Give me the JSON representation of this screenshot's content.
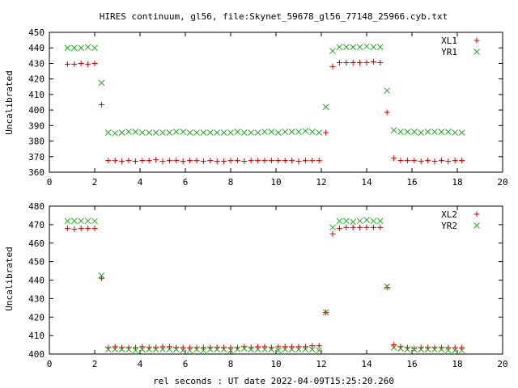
{
  "title": "HIRES continuum, gl56, file:Skynet_59678_gl56_77148_25966.cyb.txt",
  "xlabel": "rel seconds : UT date 2022-04-09T15:25:20.260",
  "colors": {
    "red": "#cc0000",
    "green": "#22aa22"
  },
  "chart_data": [
    {
      "type": "scatter",
      "ylabel": "Uncalibrated",
      "xlim": [
        0,
        20
      ],
      "ylim": [
        360,
        450
      ],
      "xticks": [
        0,
        2,
        4,
        6,
        8,
        10,
        12,
        14,
        16,
        18,
        20
      ],
      "yticks": [
        360,
        370,
        380,
        390,
        400,
        410,
        420,
        430,
        440,
        450
      ],
      "legend": "top-right",
      "grid": false,
      "x": [
        0.8,
        1.1,
        1.4,
        1.7,
        2.0,
        2.3,
        2.6,
        2.9,
        3.2,
        3.5,
        3.8,
        4.1,
        4.4,
        4.7,
        5.0,
        5.3,
        5.6,
        5.9,
        6.2,
        6.5,
        6.8,
        7.1,
        7.4,
        7.7,
        8.0,
        8.3,
        8.6,
        8.9,
        9.2,
        9.5,
        9.8,
        10.1,
        10.4,
        10.7,
        11.0,
        11.3,
        11.6,
        11.9,
        12.2,
        12.5,
        12.8,
        13.1,
        13.4,
        13.7,
        14.0,
        14.3,
        14.6,
        14.9,
        15.2,
        15.5,
        15.8,
        16.1,
        16.4,
        16.7,
        17.0,
        17.3,
        17.6,
        17.9,
        18.2
      ],
      "series": [
        {
          "name": "XL1",
          "marker": "plus",
          "color": "#cc0000",
          "values": [
            429.5,
            429.5,
            430,
            429.5,
            430,
            403.5,
            367.5,
            367.5,
            367,
            367.5,
            367,
            367.5,
            367.5,
            368,
            367,
            367.5,
            367.5,
            367,
            367.5,
            367.5,
            367,
            367.5,
            367,
            367,
            367.5,
            367.5,
            367,
            367.5,
            367.5,
            367.5,
            367.5,
            367.5,
            367.5,
            367.5,
            367,
            367.5,
            367.5,
            367.5,
            385.5,
            428,
            430.5,
            430.5,
            430.5,
            430.5,
            430.5,
            431,
            430.5,
            398.5,
            369,
            367.5,
            367.5,
            367.5,
            367,
            367.5,
            367,
            367.5,
            367,
            367.5,
            367.5
          ]
        },
        {
          "name": "YR1",
          "marker": "cross",
          "color": "#22aa22",
          "values": [
            440,
            440,
            440,
            440.5,
            440,
            417.5,
            385.5,
            385,
            385.5,
            386,
            386,
            385.5,
            385.5,
            385.5,
            385.5,
            385.5,
            386,
            386,
            385.5,
            385.5,
            385.5,
            385.5,
            385.5,
            385.5,
            385.5,
            386,
            385.5,
            385.5,
            385.5,
            386,
            386,
            385.5,
            386,
            386,
            386,
            386.5,
            386,
            385.5,
            402,
            438,
            440.5,
            440.5,
            440.5,
            440.5,
            441,
            440.5,
            440.5,
            412.5,
            387,
            386,
            386,
            386,
            385.5,
            386,
            386,
            386,
            386,
            385.5,
            385.5
          ]
        }
      ]
    },
    {
      "type": "scatter",
      "ylabel": "Uncalibrated",
      "xlim": [
        0,
        20
      ],
      "ylim": [
        400,
        480
      ],
      "xticks": [
        0,
        2,
        4,
        6,
        8,
        10,
        12,
        14,
        16,
        18,
        20
      ],
      "yticks": [
        400,
        410,
        420,
        430,
        440,
        450,
        460,
        470,
        480
      ],
      "legend": "top-right",
      "grid": false,
      "x": [
        0.8,
        1.1,
        1.4,
        1.7,
        2.0,
        2.3,
        2.6,
        2.9,
        3.2,
        3.5,
        3.8,
        4.1,
        4.4,
        4.7,
        5.0,
        5.3,
        5.6,
        5.9,
        6.2,
        6.5,
        6.8,
        7.1,
        7.4,
        7.7,
        8.0,
        8.3,
        8.6,
        8.9,
        9.2,
        9.5,
        9.8,
        10.1,
        10.4,
        10.7,
        11.0,
        11.3,
        11.6,
        11.9,
        12.2,
        12.5,
        12.8,
        13.1,
        13.4,
        13.7,
        14.0,
        14.3,
        14.6,
        14.9,
        15.2,
        15.5,
        15.8,
        16.1,
        16.4,
        16.7,
        17.0,
        17.3,
        17.6,
        17.9,
        18.2
      ],
      "series": [
        {
          "name": "XL2",
          "marker": "plus",
          "color": "#cc0000",
          "values": [
            468,
            467.5,
            468,
            468,
            468,
            441,
            403.5,
            404,
            403.5,
            403.5,
            403.5,
            404,
            403.5,
            403.5,
            404,
            404,
            403.5,
            403.5,
            403.5,
            403.5,
            403.5,
            403.5,
            403.5,
            403.5,
            403.5,
            403.5,
            404,
            403.5,
            404,
            404,
            403.5,
            404,
            404,
            404,
            404,
            404,
            404.5,
            404.5,
            422.5,
            465,
            468,
            468.5,
            468.5,
            468.5,
            468.5,
            468.5,
            468.5,
            436,
            405,
            404,
            403.5,
            403,
            403.5,
            403.5,
            403.5,
            403.5,
            403.5,
            403.5,
            403.5
          ]
        },
        {
          "name": "YR2",
          "marker": "cross",
          "color": "#22aa22",
          "values": [
            472,
            472,
            472,
            472,
            472,
            442.5,
            402.5,
            402.5,
            402.5,
            402.5,
            402,
            402.5,
            402.5,
            402.5,
            402.5,
            402.5,
            402.5,
            402,
            402,
            402.5,
            402,
            402.5,
            402.5,
            402.5,
            402,
            402.5,
            403,
            402.5,
            402.5,
            402.5,
            402.5,
            402,
            402.5,
            402.5,
            402.5,
            402.5,
            402.5,
            402,
            422.5,
            468.5,
            472,
            472,
            471.5,
            472,
            472.5,
            472,
            472,
            436.5,
            403.5,
            403,
            402.5,
            402.5,
            402.5,
            402.5,
            402.5,
            402.5,
            402,
            402,
            402
          ]
        }
      ]
    }
  ]
}
